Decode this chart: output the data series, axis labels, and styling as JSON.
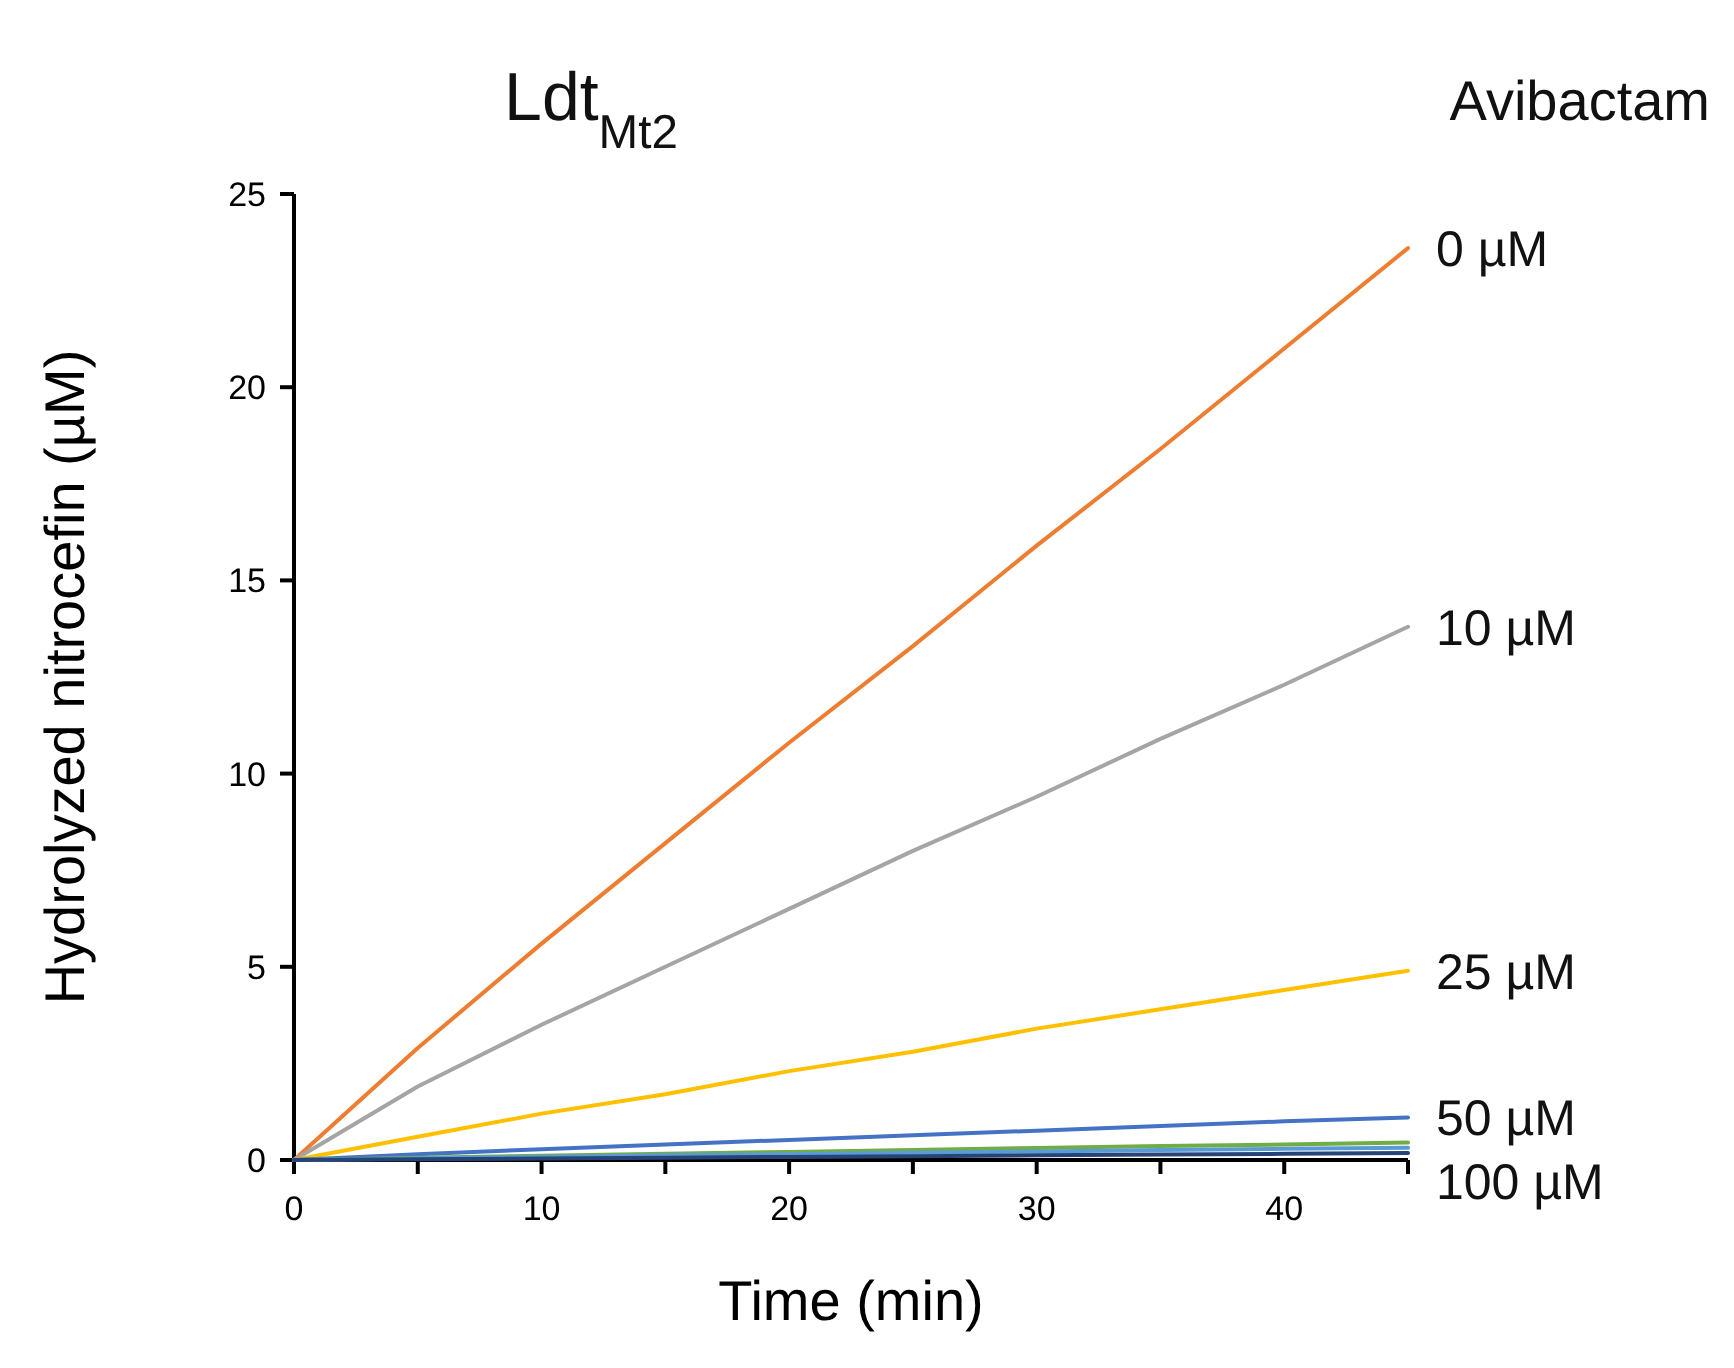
{
  "chart_data": {
    "type": "line",
    "title": "Ldt$_{Mt2}$",
    "legend_title": "Avibactam",
    "xlabel": "Time (min)",
    "ylabel": "Hydrolyzed nitrocefin (µM)",
    "x": [
      0,
      5,
      10,
      15,
      20,
      25,
      30,
      35,
      40,
      45
    ],
    "xlim": [
      0,
      45
    ],
    "xticks": [
      0,
      {
        "value": 5,
        "label": null
      },
      10,
      {
        "value": 15,
        "label": null
      },
      20,
      {
        "value": 25,
        "label": null
      },
      30,
      {
        "value": 35,
        "label": null
      },
      40,
      {
        "value": 45,
        "label": null
      }
    ],
    "ylim": [
      0,
      25
    ],
    "yticks": [
      0,
      5,
      10,
      15,
      20,
      25
    ],
    "grid": false,
    "marker": "none",
    "line_style": "solid",
    "series": [
      {
        "name": "0 µM",
        "color": "#ed7d31",
        "values": [
          0,
          2.9,
          5.6,
          8.2,
          10.8,
          13.3,
          15.9,
          18.4,
          21.0,
          23.6
        ]
      },
      {
        "name": "10 µM",
        "color": "#a5a5a5",
        "values": [
          0,
          1.9,
          3.5,
          5.0,
          6.5,
          8.0,
          9.4,
          10.9,
          12.3,
          13.8
        ]
      },
      {
        "name": "25 µM",
        "color": "#ffc000",
        "values": [
          0,
          0.6,
          1.2,
          1.7,
          2.3,
          2.8,
          3.4,
          3.9,
          4.4,
          4.9
        ]
      },
      {
        "name": "50 µM",
        "color": "#4472c4",
        "values": [
          0,
          0.15,
          0.28,
          0.4,
          0.52,
          0.64,
          0.76,
          0.88,
          1.0,
          1.1
        ]
      },
      {
        "color": "#70ad47",
        "values": [
          0,
          0.06,
          0.11,
          0.16,
          0.21,
          0.26,
          0.31,
          0.36,
          0.4,
          0.45
        ]
      },
      {
        "color": "#5b9bd5",
        "values": [
          0,
          0.04,
          0.08,
          0.12,
          0.15,
          0.19,
          0.22,
          0.26,
          0.29,
          0.32
        ]
      },
      {
        "name": "100 µM",
        "color": "#264478",
        "values": [
          0,
          0.02,
          0.04,
          0.06,
          0.08,
          0.1,
          0.12,
          0.14,
          0.16,
          0.18
        ]
      }
    ]
  }
}
